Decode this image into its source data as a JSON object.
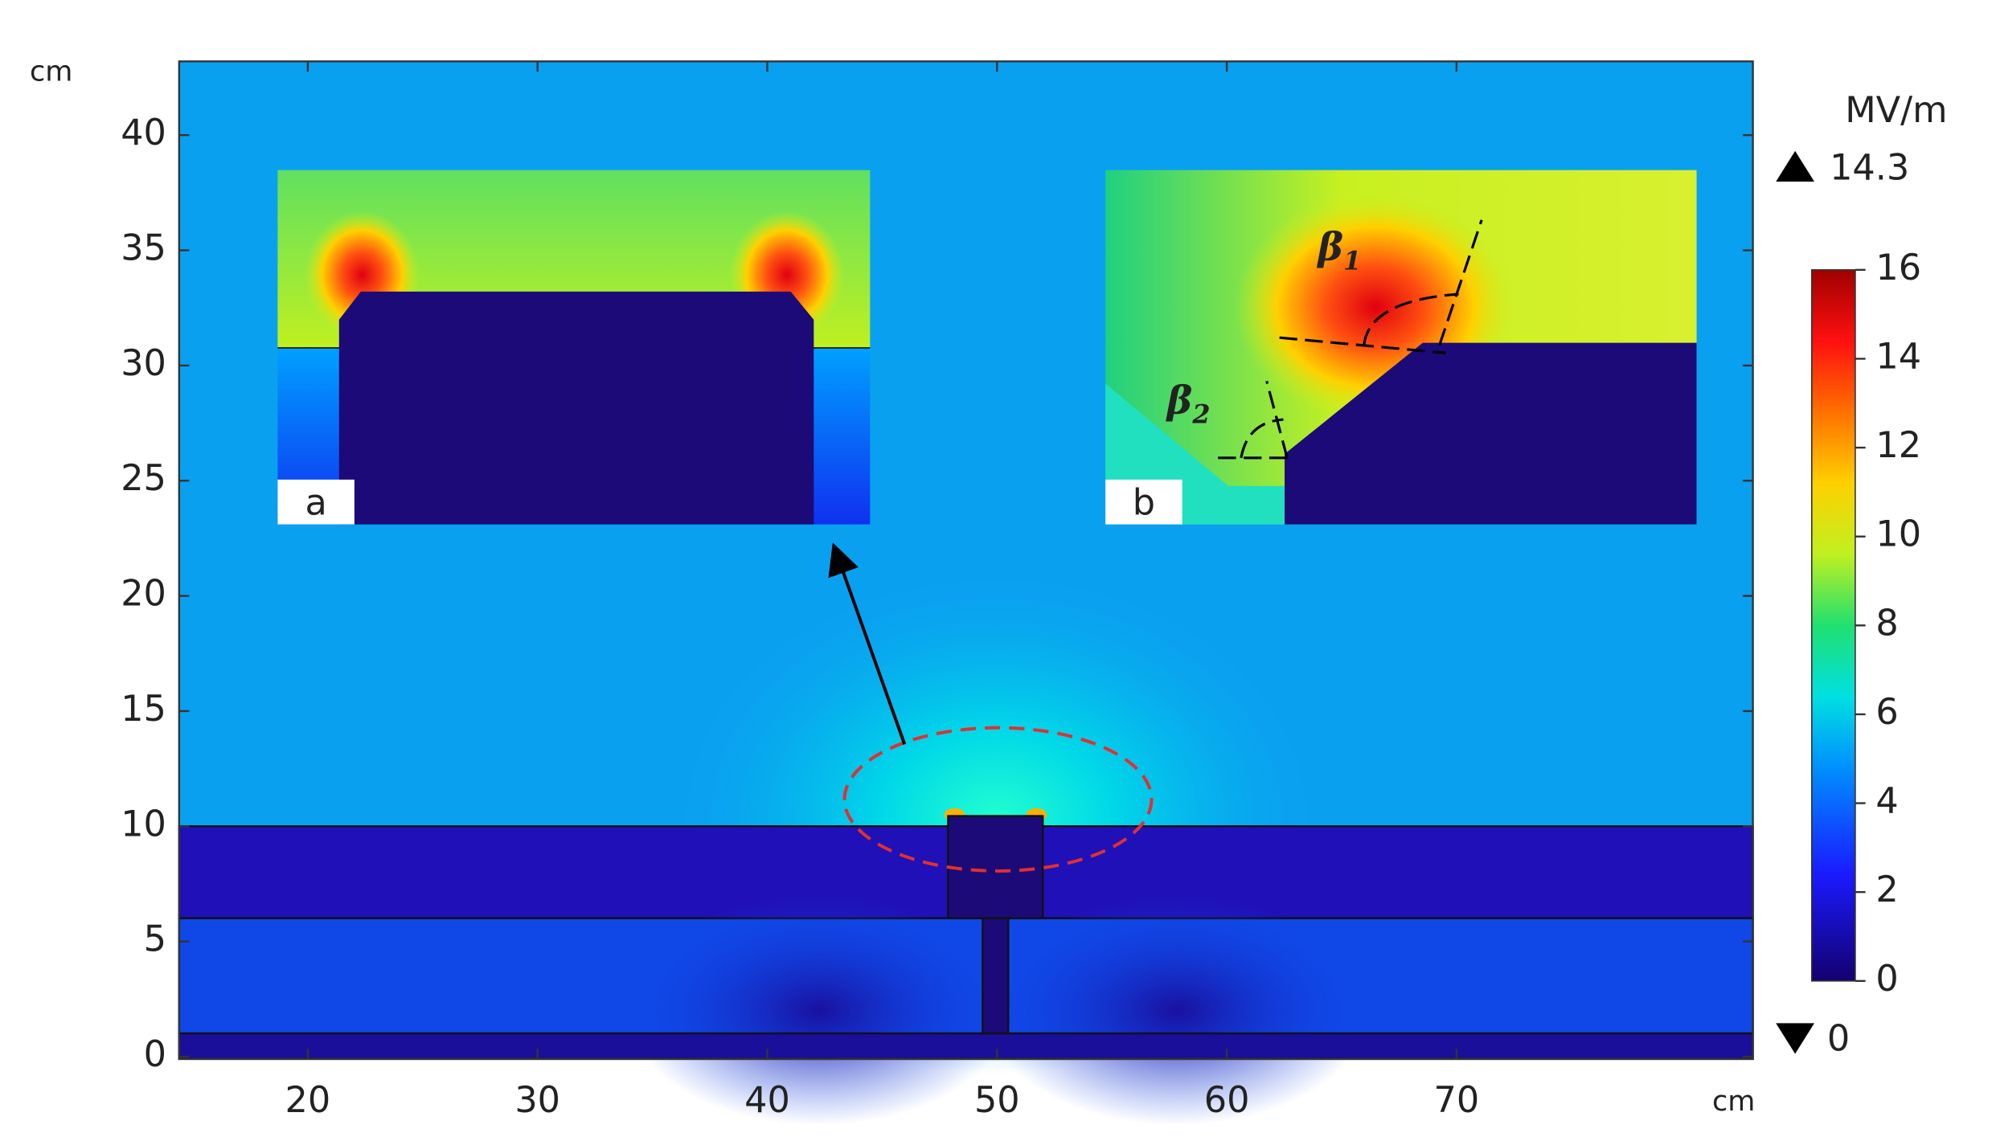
{
  "chart_data": {
    "type": "heatmap",
    "x_label": "cm",
    "y_label": "cm",
    "xlim": [
      14.4,
      82.9
    ],
    "ylim": [
      -0.1,
      43.2
    ],
    "xticks": [
      20,
      30,
      40,
      50,
      60,
      70
    ],
    "yticks": [
      0,
      5,
      10,
      15,
      20,
      25,
      30,
      35,
      40
    ],
    "colorbar": {
      "label": "MV/m",
      "lim": [
        0,
        16
      ],
      "ticks": [
        0,
        2,
        4,
        6,
        8,
        10,
        12,
        14,
        16
      ],
      "max": 14.3,
      "min": 0
    },
    "insets": [
      {
        "label": "a"
      },
      {
        "label": "b"
      }
    ],
    "angles": [
      {
        "symbol": "β",
        "subscript": "1"
      },
      {
        "symbol": "β",
        "subscript": "2"
      }
    ]
  }
}
